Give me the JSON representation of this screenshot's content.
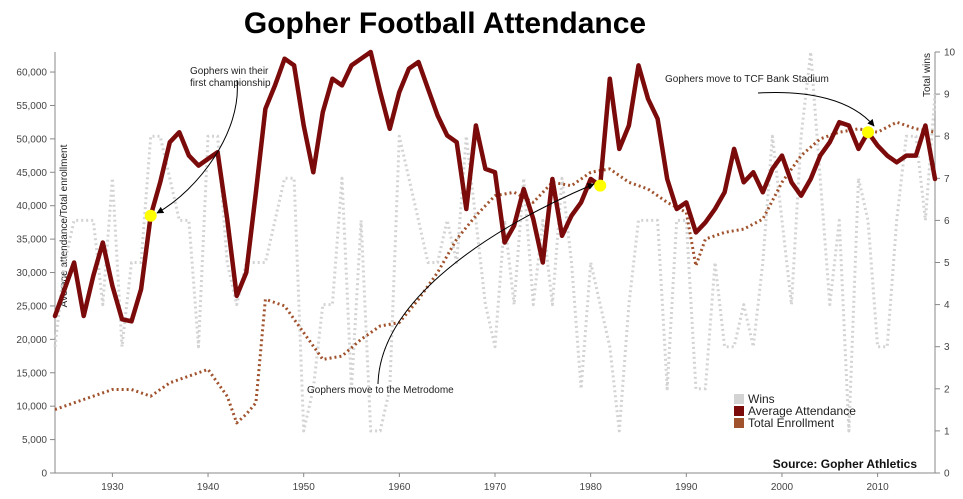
{
  "chart_data": {
    "type": "line",
    "title": "Gopher Football Attendance",
    "ylabel_left": "Average attendance/Total enrollment",
    "ylabel_right": "Total wins",
    "ylim_left": [
      0,
      63000
    ],
    "ylim_right": [
      0,
      10
    ],
    "xlim": [
      1924,
      2016
    ],
    "x_ticks": [
      1930,
      1940,
      1950,
      1960,
      1970,
      1980,
      1990,
      2000,
      2010
    ],
    "y_ticks_left": [
      0,
      5000,
      10000,
      15000,
      20000,
      25000,
      30000,
      35000,
      40000,
      45000,
      50000,
      55000,
      60000
    ],
    "y_tick_labels_left": [
      "0",
      "5,000",
      "10,000",
      "15,000",
      "20,000",
      "25,000",
      "30,000",
      "35,000",
      "40,000",
      "45,000",
      "50,000",
      "55,000",
      "60,000"
    ],
    "y_ticks_right": [
      0,
      1,
      2,
      3,
      4,
      5,
      6,
      7,
      8,
      9,
      10
    ],
    "legend": [
      "Wins",
      "Average Attendance",
      "Total Enrollment"
    ],
    "legend_position": "bottom-right",
    "source": "Source: Gopher Athletics",
    "colors": {
      "wins": "#d3d3d3",
      "attendance": "#7b0a0a",
      "enrollment": "#a0522d",
      "highlight": "#ffff00"
    },
    "annotations": [
      {
        "lines": [
          "Gophers win their",
          "first championship"
        ],
        "year": 1934
      },
      {
        "lines": [
          "Gophers move to the Metrodome"
        ],
        "year": 1981
      },
      {
        "lines": [
          "Gophers move to TCF Bank Stadium"
        ],
        "year": 2009
      }
    ],
    "highlights": [
      {
        "year": 1934,
        "value": 38500
      },
      {
        "year": 1981,
        "value": 43000
      },
      {
        "year": 2009,
        "value": 51000
      }
    ],
    "attendance": {
      "x": [
        1924,
        1925,
        1926,
        1927,
        1928,
        1929,
        1930,
        1931,
        1932,
        1933,
        1934,
        1935,
        1936,
        1937,
        1938,
        1939,
        1940,
        1941,
        1942,
        1943,
        1944,
        1945,
        1946,
        1947,
        1948,
        1949,
        1950,
        1951,
        1952,
        1953,
        1954,
        1955,
        1956,
        1957,
        1958,
        1959,
        1960,
        1961,
        1962,
        1963,
        1964,
        1965,
        1966,
        1967,
        1968,
        1969,
        1970,
        1971,
        1972,
        1973,
        1974,
        1975,
        1976,
        1977,
        1978,
        1979,
        1980,
        1981,
        1982,
        1983,
        1984,
        1985,
        1986,
        1987,
        1988,
        1989,
        1990,
        1991,
        1992,
        1993,
        1994,
        1995,
        1996,
        1997,
        1998,
        1999,
        2000,
        2001,
        2002,
        2003,
        2004,
        2005,
        2006,
        2007,
        2008,
        2009,
        2010,
        2011,
        2012,
        2013,
        2014,
        2015,
        2016
      ],
      "y": [
        23500,
        27500,
        31500,
        23500,
        29500,
        34500,
        28000,
        23000,
        22700,
        27500,
        38500,
        43500,
        49500,
        51000,
        47500,
        46000,
        47000,
        48000,
        38000,
        26500,
        30000,
        42000,
        54500,
        58000,
        62000,
        61000,
        52000,
        45000,
        54000,
        59000,
        58000,
        61000,
        62000,
        63000,
        57000,
        51500,
        57000,
        60500,
        61500,
        57500,
        53500,
        50500,
        49500,
        39500,
        52000,
        45500,
        45000,
        34500,
        37000,
        42500,
        38000,
        31500,
        44000,
        35500,
        38500,
        40500,
        44000,
        43000,
        59000,
        48500,
        52000,
        61000,
        56000,
        53000,
        44000,
        39500,
        40500,
        36000,
        37500,
        39500,
        42000,
        48500,
        43500,
        45000,
        42000,
        45500,
        47500,
        43500,
        41500,
        44000,
        47500,
        49500,
        52500,
        52000,
        48500,
        51000,
        49000,
        47500,
        46500,
        47500,
        47500,
        52000,
        44000
      ]
    },
    "enrollment": {
      "x": [
        1924,
        1926,
        1928,
        1930,
        1932,
        1934,
        1936,
        1938,
        1940,
        1942,
        1943,
        1944,
        1945,
        1946,
        1948,
        1950,
        1952,
        1954,
        1956,
        1958,
        1960,
        1962,
        1964,
        1966,
        1968,
        1970,
        1972,
        1974,
        1976,
        1978,
        1980,
        1982,
        1984,
        1986,
        1988,
        1990,
        1991,
        1992,
        1994,
        1996,
        1998,
        2000,
        2002,
        2004,
        2006,
        2008,
        2010,
        2012,
        2014,
        2016
      ],
      "y": [
        9500,
        10500,
        11500,
        12500,
        12500,
        11500,
        13500,
        14500,
        15500,
        11500,
        7500,
        8800,
        10500,
        26000,
        25000,
        21000,
        17000,
        17500,
        20000,
        22000,
        22500,
        26000,
        30000,
        35000,
        38500,
        41500,
        42000,
        40500,
        43500,
        43000,
        45000,
        45500,
        43500,
        42500,
        40500,
        39000,
        31000,
        35000,
        36000,
        36500,
        38000,
        43500,
        47500,
        50000,
        51000,
        51500,
        51000,
        52500,
        51500,
        51000
      ]
    },
    "wins": {
      "x": [
        1924,
        1925,
        1926,
        1927,
        1928,
        1929,
        1930,
        1931,
        1932,
        1933,
        1934,
        1935,
        1936,
        1937,
        1938,
        1939,
        1940,
        1941,
        1942,
        1943,
        1944,
        1945,
        1946,
        1947,
        1948,
        1949,
        1950,
        1951,
        1952,
        1953,
        1954,
        1955,
        1956,
        1957,
        1958,
        1959,
        1960,
        1961,
        1962,
        1963,
        1964,
        1965,
        1966,
        1967,
        1968,
        1969,
        1970,
        1971,
        1972,
        1973,
        1974,
        1975,
        1976,
        1977,
        1978,
        1979,
        1980,
        1981,
        1982,
        1983,
        1984,
        1985,
        1986,
        1987,
        1988,
        1989,
        1990,
        1991,
        1992,
        1993,
        1994,
        1995,
        1996,
        1997,
        1998,
        1999,
        2000,
        2001,
        2002,
        2003,
        2004,
        2005,
        2006,
        2007,
        2008,
        2009,
        2010,
        2011,
        2012,
        2013,
        2014,
        2015,
        2016
      ],
      "y": [
        3,
        5,
        6,
        6,
        6,
        4,
        7,
        3,
        5,
        5,
        8,
        8,
        7,
        6,
        6,
        3,
        8,
        8,
        5,
        4,
        5,
        5,
        5,
        6,
        7,
        7,
        1,
        2,
        4,
        4,
        7,
        2,
        6,
        1,
        1,
        2,
        8,
        7,
        6,
        5,
        5,
        6,
        5,
        8,
        6,
        4,
        3,
        6,
        4,
        7,
        4,
        6,
        4,
        7,
        5,
        2,
        5,
        4,
        3,
        1,
        4,
        6,
        6,
        6,
        2,
        6,
        6,
        2,
        2,
        5,
        3,
        3,
        4,
        3,
        5,
        8,
        6,
        4,
        8,
        10,
        7,
        4,
        6,
        1,
        7,
        6,
        3,
        3,
        6,
        8,
        8,
        6,
        9
      ]
    }
  }
}
